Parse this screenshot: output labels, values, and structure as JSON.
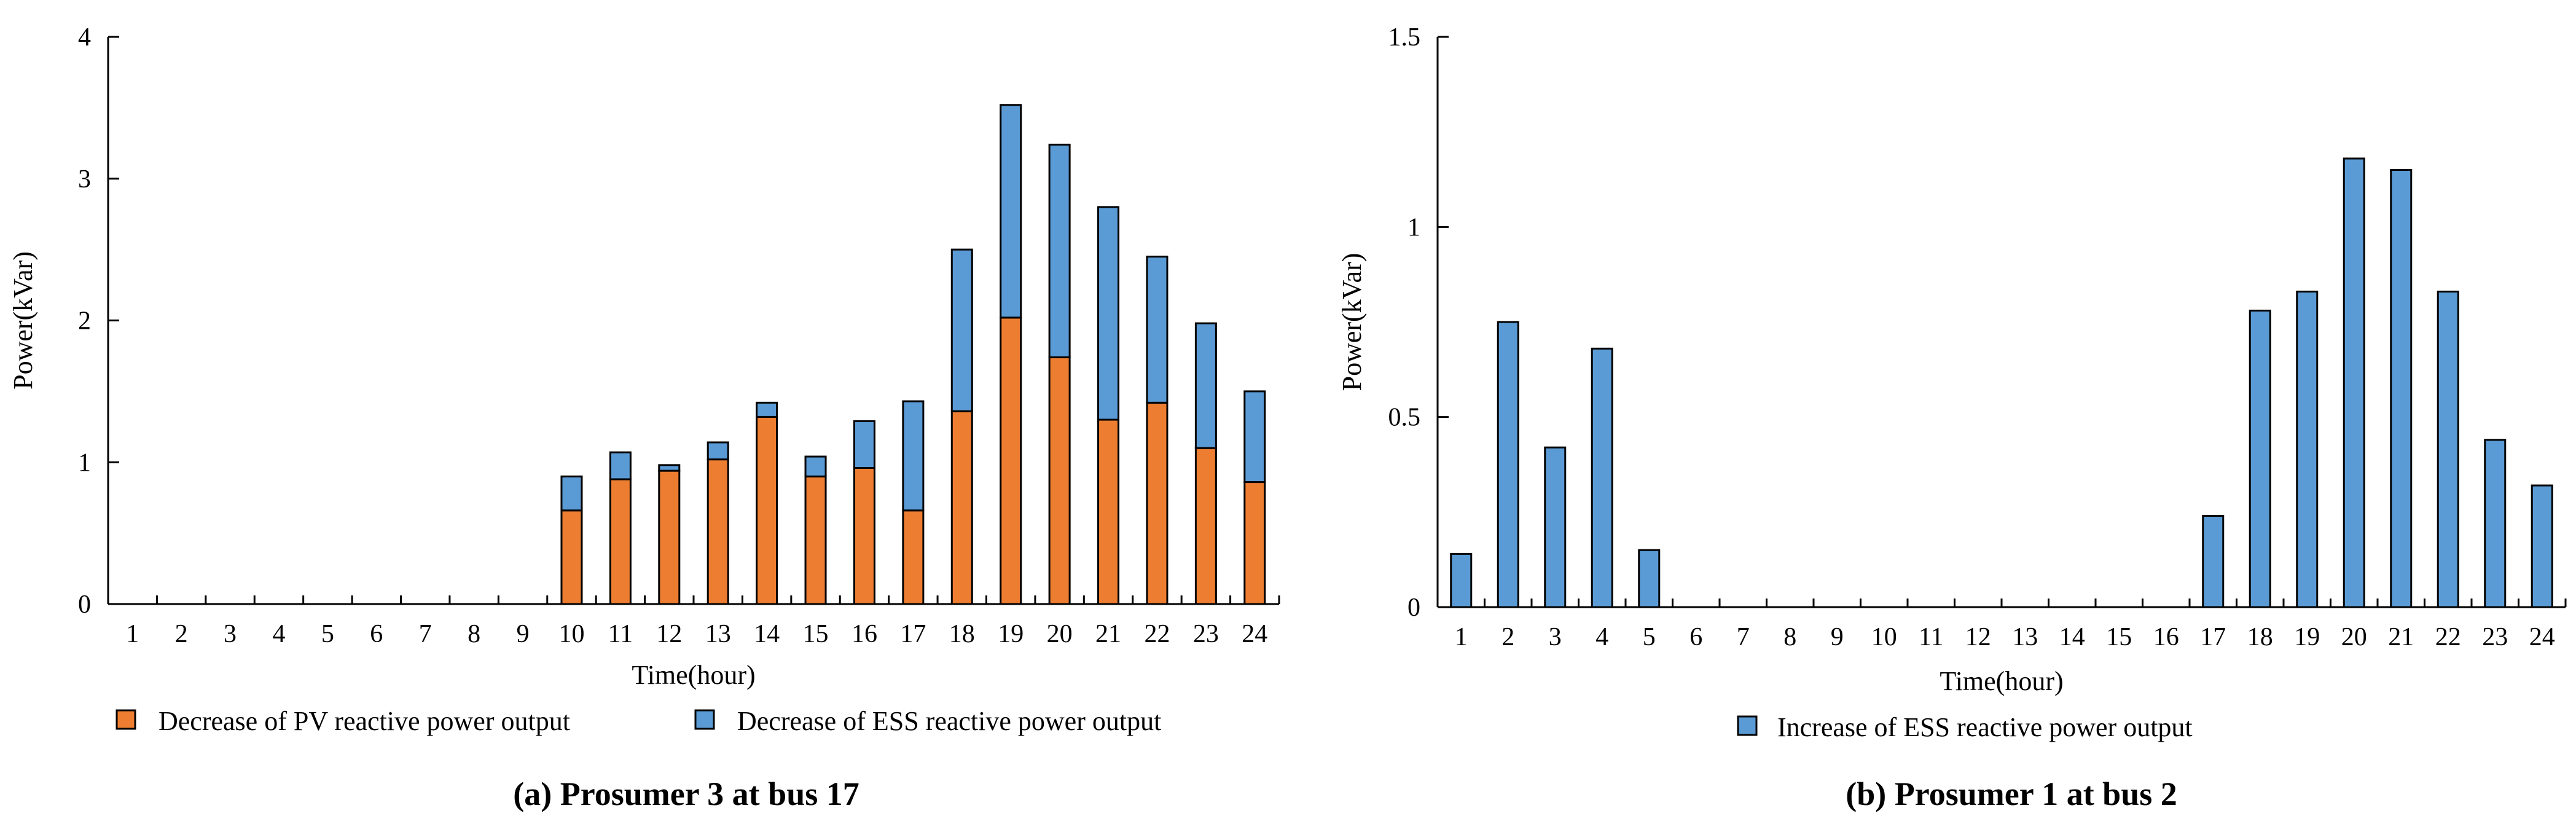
{
  "charts": [
    {
      "caption": "(a) Prosumer 3 at bus 17",
      "legend": [
        "Decrease of PV reactive power output",
        "Decrease of ESS reactive power output"
      ],
      "series_colors": [
        "#ED7D31",
        "#5B9BD5"
      ]
    },
    {
      "caption": "(b) Prosumer 1 at bus 2",
      "legend": [
        "Increase of ESS reactive power output"
      ],
      "series_colors": [
        "#5B9BD5"
      ]
    }
  ],
  "chart_data": [
    {
      "type": "bar",
      "stacked": true,
      "title": "(a) Prosumer 3 at bus 17",
      "xlabel": "Time(hour)",
      "ylabel": "Power(kVar)",
      "ylim": [
        0,
        4
      ],
      "yticks": [
        "0",
        "1",
        "2",
        "3",
        "4"
      ],
      "categories": [
        "1",
        "2",
        "3",
        "4",
        "5",
        "6",
        "7",
        "8",
        "9",
        "10",
        "11",
        "12",
        "13",
        "14",
        "15",
        "16",
        "17",
        "18",
        "19",
        "20",
        "21",
        "22",
        "23",
        "24"
      ],
      "series": [
        {
          "name": "Decrease of PV reactive power output",
          "values": [
            0,
            0,
            0,
            0,
            0,
            0,
            0,
            0,
            0,
            0.66,
            0.88,
            0.94,
            1.02,
            1.32,
            0.9,
            0.96,
            0.66,
            1.36,
            2.02,
            1.74,
            1.3,
            1.42,
            1.1,
            0.86
          ]
        },
        {
          "name": "Decrease of ESS reactive power output",
          "values": [
            0,
            0,
            0,
            0,
            0,
            0,
            0,
            0,
            0,
            0.24,
            0.19,
            0.04,
            0.12,
            0.1,
            0.14,
            0.33,
            0.77,
            1.14,
            1.5,
            1.5,
            1.5,
            1.03,
            0.88,
            0.64
          ]
        }
      ]
    },
    {
      "type": "bar",
      "stacked": false,
      "title": "(b) Prosumer 1 at bus 2",
      "xlabel": "Time(hour)",
      "ylabel": "Power(kVar)",
      "ylim": [
        0,
        1.5
      ],
      "yticks": [
        "0",
        "0.5",
        "1",
        "1.5"
      ],
      "categories": [
        "1",
        "2",
        "3",
        "4",
        "5",
        "6",
        "7",
        "8",
        "9",
        "10",
        "11",
        "12",
        "13",
        "14",
        "15",
        "16",
        "17",
        "18",
        "19",
        "20",
        "21",
        "22",
        "23",
        "24"
      ],
      "series": [
        {
          "name": "Increase of ESS reactive power output",
          "values": [
            0.14,
            0.75,
            0.42,
            0.68,
            0.15,
            0,
            0,
            0,
            0,
            0,
            0,
            0,
            0,
            0,
            0,
            0,
            0.24,
            0.78,
            0.83,
            1.18,
            1.15,
            0.83,
            0.44,
            0.32
          ]
        }
      ]
    }
  ]
}
